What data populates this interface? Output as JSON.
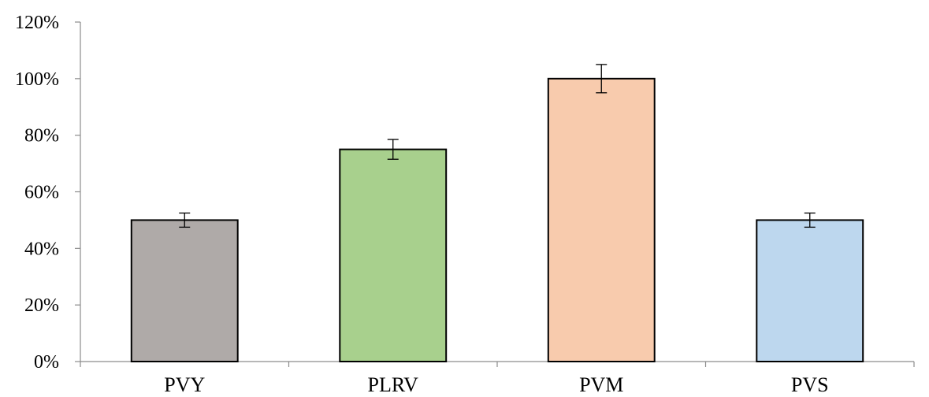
{
  "chart_data": {
    "type": "bar",
    "title": "",
    "xlabel": "",
    "ylabel": "",
    "categories": [
      "PVY",
      "PLRV",
      "PVM",
      "PVS"
    ],
    "values": [
      50,
      75,
      100,
      50
    ],
    "errors": [
      2.5,
      3.5,
      5,
      2.5
    ],
    "value_format": "percent",
    "ylim": [
      0,
      120
    ],
    "yticks": [
      0,
      20,
      40,
      60,
      80,
      100,
      120
    ],
    "ytick_labels": [
      "0%",
      "20%",
      "40%",
      "60%",
      "80%",
      "100%",
      "120%"
    ],
    "colors": [
      "#afaaa8",
      "#a8d08d",
      "#f8cbad",
      "#bdd7ee"
    ],
    "grid": false,
    "legend": "none"
  }
}
